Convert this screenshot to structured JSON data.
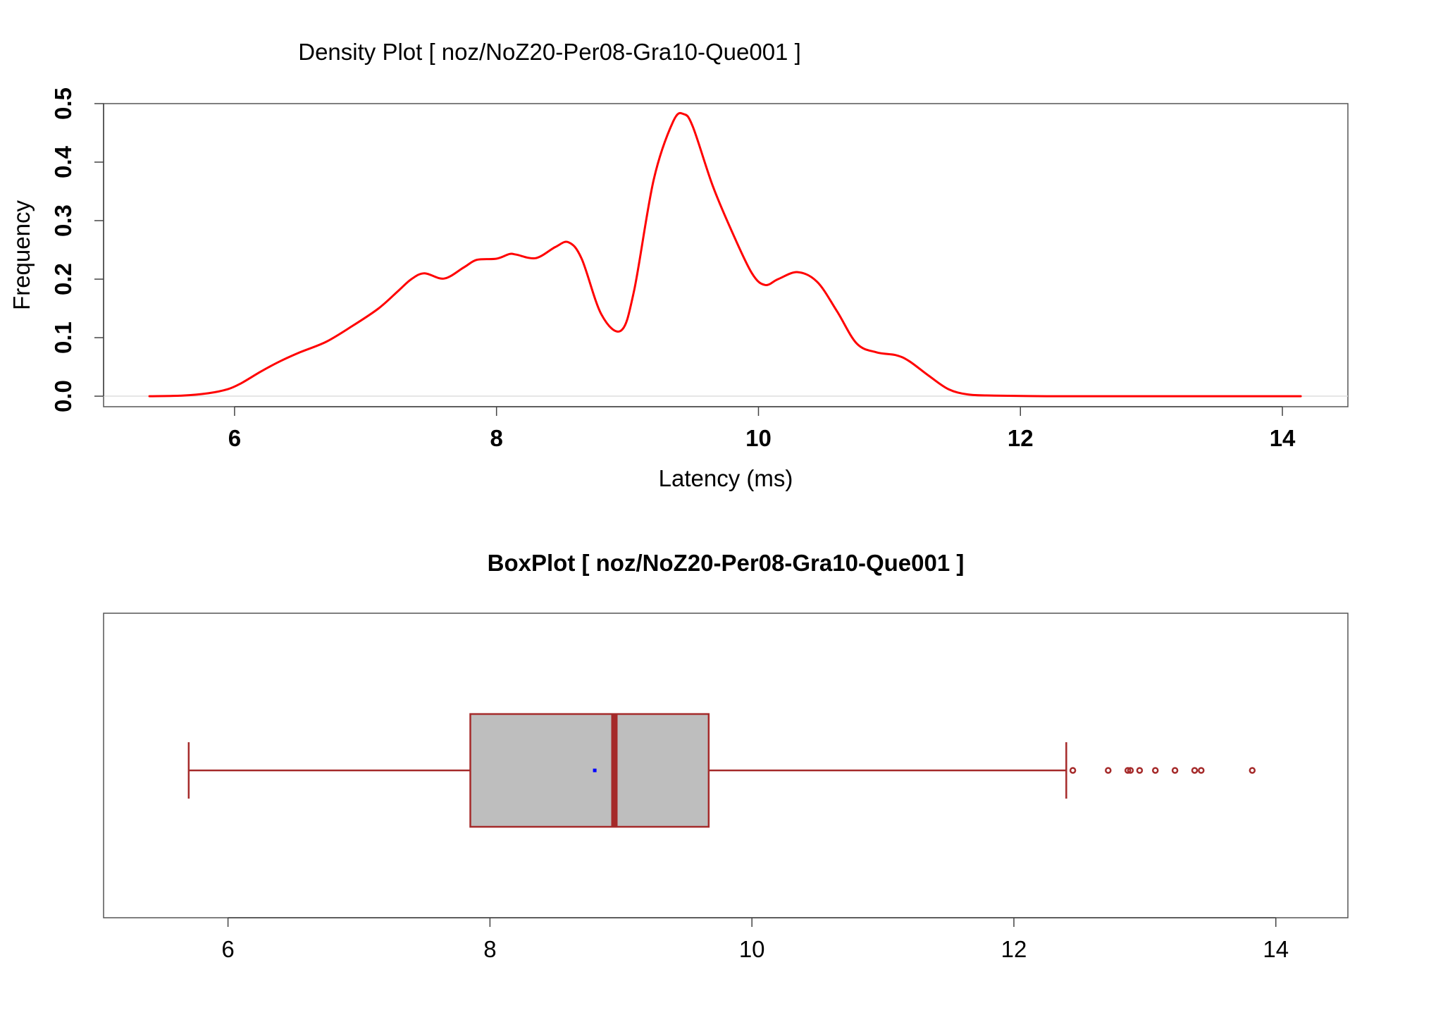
{
  "chart_data": [
    {
      "type": "line",
      "title": "Density Plot [ noz/NoZ20-Per08-Gra10-Que001 ]",
      "xlabel": "Latency (ms)",
      "ylabel": "Frequency",
      "xlim": [
        5.0,
        14.5
      ],
      "ylim": [
        -0.018,
        0.5
      ],
      "x_ticks": [
        "6",
        "8",
        "10",
        "12",
        "14"
      ],
      "y_ticks": [
        "0.0",
        "0.1",
        "0.2",
        "0.3",
        "0.4",
        "0.5"
      ],
      "line_color": "#ff0000",
      "zero_line_color": "#dddddd",
      "series": [
        {
          "x": [
            5.35,
            5.6,
            5.8,
            5.95,
            6.05,
            6.2,
            6.35,
            6.5,
            6.7,
            6.9,
            7.1,
            7.25,
            7.35,
            7.45,
            7.6,
            7.75,
            7.85,
            8.0,
            8.1,
            8.15,
            8.3,
            8.45,
            8.55,
            8.65,
            8.8,
            8.95,
            9.05,
            9.2,
            9.35,
            9.43,
            9.5,
            9.65,
            9.8,
            9.95,
            10.05,
            10.15,
            10.3,
            10.45,
            10.6,
            10.75,
            10.9,
            11.05,
            11.15,
            11.3,
            11.45,
            11.6,
            11.8,
            12.2,
            12.6,
            13.0,
            13.5,
            14.14
          ],
          "y": [
            0.0,
            0.001,
            0.005,
            0.012,
            0.022,
            0.042,
            0.06,
            0.075,
            0.093,
            0.12,
            0.15,
            0.18,
            0.2,
            0.21,
            0.201,
            0.22,
            0.233,
            0.235,
            0.243,
            0.242,
            0.236,
            0.255,
            0.263,
            0.235,
            0.14,
            0.112,
            0.18,
            0.37,
            0.47,
            0.482,
            0.46,
            0.36,
            0.28,
            0.21,
            0.19,
            0.2,
            0.212,
            0.195,
            0.145,
            0.09,
            0.075,
            0.07,
            0.06,
            0.035,
            0.012,
            0.003,
            0.001,
            0.0,
            0.0,
            0.0,
            0.0,
            0.0
          ]
        }
      ]
    },
    {
      "type": "box",
      "title": "BoxPlot [ noz/NoZ20-Per08-Gra10-Que001 ]",
      "xlim": [
        5.05,
        14.55
      ],
      "x_ticks": [
        "6",
        "8",
        "10",
        "12",
        "14"
      ],
      "whisker_low": 5.7,
      "q1": 7.85,
      "median": 8.95,
      "q3": 9.67,
      "whisker_high": 12.4,
      "mean": 8.8,
      "outliers": [
        12.45,
        12.72,
        12.87,
        12.89,
        12.96,
        13.08,
        13.23,
        13.38,
        13.43,
        13.82
      ],
      "box_fill": "#bebebe",
      "box_stroke": "#a52a2a",
      "mean_color": "#0000ff"
    }
  ]
}
